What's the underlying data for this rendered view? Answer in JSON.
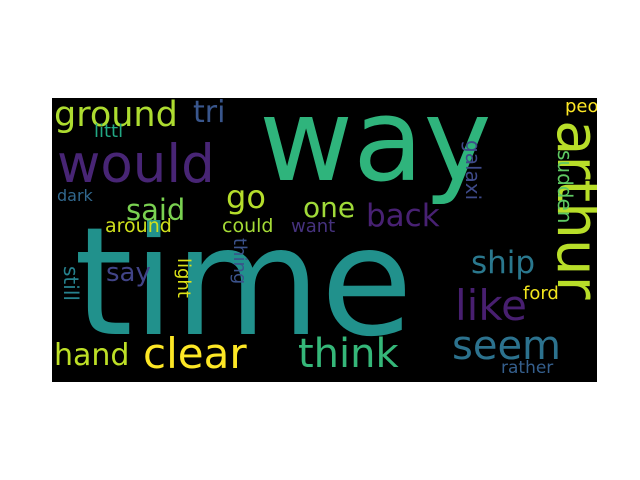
{
  "wordcloud": {
    "background": "#000000",
    "words": [
      {
        "text": "way",
        "color": "#2fb47c"
      },
      {
        "text": "time",
        "color": "#21918c"
      },
      {
        "text": "would",
        "color": "#482575"
      },
      {
        "text": "arthur",
        "color": "#b8de29"
      },
      {
        "text": "clear",
        "color": "#fde725"
      },
      {
        "text": "think",
        "color": "#35b779"
      },
      {
        "text": "seem",
        "color": "#2c728e"
      },
      {
        "text": "like",
        "color": "#481f70"
      },
      {
        "text": "ground",
        "color": "#addc30"
      },
      {
        "text": "said",
        "color": "#7ad151"
      },
      {
        "text": "hand",
        "color": "#bddf26"
      },
      {
        "text": "back",
        "color": "#482173"
      },
      {
        "text": "ship",
        "color": "#2a788e"
      },
      {
        "text": "tri",
        "color": "#39568c"
      },
      {
        "text": "one",
        "color": "#a0da39"
      },
      {
        "text": "go",
        "color": "#b5de2b"
      },
      {
        "text": "say",
        "color": "#414487"
      },
      {
        "text": "littl",
        "color": "#22a884"
      },
      {
        "text": "dark",
        "color": "#31688e"
      },
      {
        "text": "around",
        "color": "#d0e11c"
      },
      {
        "text": "could",
        "color": "#a5db36"
      },
      {
        "text": "want",
        "color": "#46327e"
      },
      {
        "text": "light",
        "color": "#dde318"
      },
      {
        "text": "thing",
        "color": "#3b528b"
      },
      {
        "text": "still",
        "color": "#26828e"
      },
      {
        "text": "galaxi",
        "color": "#3e4a89"
      },
      {
        "text": "sudden",
        "color": "#5ec962"
      },
      {
        "text": "ford",
        "color": "#f1e51d"
      },
      {
        "text": "rather",
        "color": "#355f8d"
      },
      {
        "text": "peopl",
        "color": "#fde725"
      }
    ]
  }
}
